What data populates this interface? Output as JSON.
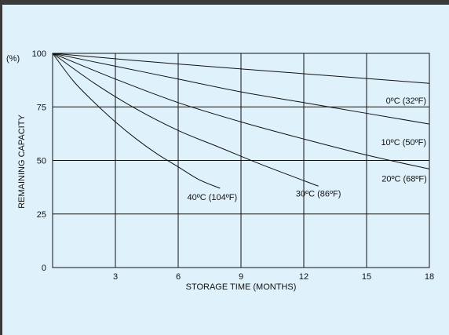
{
  "chart_data": {
    "type": "line",
    "xlabel": "STORAGE TIME (MONTHS)",
    "ylabel": "REMAINING CAPACITY",
    "y_unit": "(%)",
    "xlim": [
      0,
      18
    ],
    "ylim": [
      0,
      100
    ],
    "x_ticks": [
      3,
      6,
      9,
      12,
      15,
      18
    ],
    "y_ticks": [
      0,
      25,
      50,
      75,
      100
    ],
    "grid": true,
    "series": [
      {
        "name": "0ºC (32ºF)",
        "x": [
          0,
          6,
          12,
          18
        ],
        "y": [
          100,
          95,
          90.5,
          86
        ]
      },
      {
        "name": "10ºC (50ºF)",
        "x": [
          0,
          3,
          6,
          9,
          12,
          15,
          18
        ],
        "y": [
          100,
          94,
          88,
          82,
          77,
          72,
          67
        ]
      },
      {
        "name": "20ºC (68ºF)",
        "x": [
          0,
          3,
          6,
          9,
          12,
          15,
          18
        ],
        "y": [
          100,
          88,
          77,
          68,
          60,
          52.5,
          46
        ]
      },
      {
        "name": "30ºC (86ºF)",
        "x": [
          0,
          2,
          4,
          6,
          8,
          10,
          12.7
        ],
        "y": [
          100,
          86,
          74,
          64,
          56,
          48,
          38
        ]
      },
      {
        "name": "40ºC (104ºF)",
        "x": [
          0,
          1,
          2,
          3,
          4,
          5,
          6,
          7,
          8
        ],
        "y": [
          100,
          87,
          77,
          68,
          60,
          53,
          47,
          41,
          37
        ]
      }
    ]
  }
}
